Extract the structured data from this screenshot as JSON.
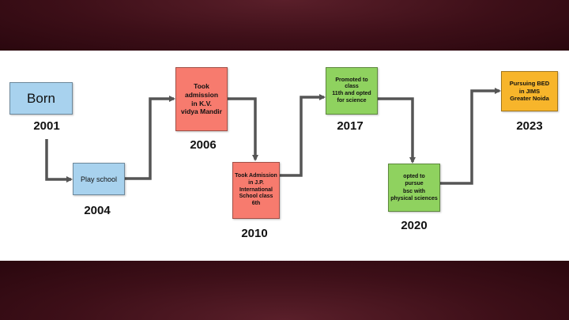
{
  "colors": {
    "blue_box": "#a8d2ee",
    "red_box": "#f77b6e",
    "green_box": "#8fd25f",
    "orange_box": "#f7b52b",
    "connector": "#555555",
    "frame": "#3a0d16"
  },
  "milestones": [
    {
      "label": "Born",
      "year": "2001"
    },
    {
      "label": "Play school",
      "year": "2004"
    },
    {
      "label": "Took\nadmission\nin K.V.\nvidya Mandir",
      "year": "2006"
    },
    {
      "label": "Took Admission\nin J.P.\nInternational\nSchool class\n6th",
      "year": "2010"
    },
    {
      "label": "Promoted to\nclass\n11th and opted\nfor science",
      "year": "2017"
    },
    {
      "label": "opted to\npursue\nbsc  with\nphysical sciences",
      "year": "2020"
    },
    {
      "label": "Pursuing BED\nin JIMS\nGreater Noida",
      "year": "2023"
    }
  ]
}
